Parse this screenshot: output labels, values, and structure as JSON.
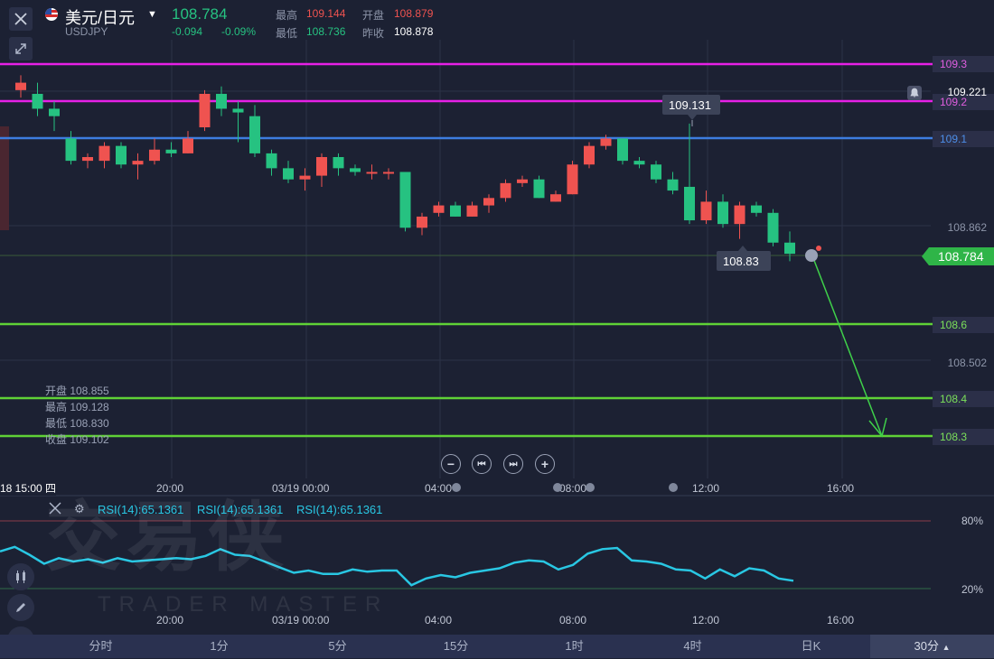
{
  "header": {
    "close_icon": "close-icon",
    "expand_icon": "expand-icon",
    "symbol": "美元/日元",
    "symbol_code": "USDJPY",
    "price": "108.784",
    "change": "-0.094",
    "change_pct": "-0.09%",
    "high_label": "最高",
    "high_value": "109.144",
    "open_label": "开盘",
    "open_value": "108.879",
    "low_label": "最低",
    "low_value": "108.736",
    "prev_close_label": "昨收",
    "prev_close_value": "108.878"
  },
  "levels": [
    {
      "label": "109.3",
      "color": "#e620e6"
    },
    {
      "label": "109.2",
      "color": "#e620e6"
    },
    {
      "label": "109.1",
      "color": "#3d7de0"
    },
    {
      "label": "108.6",
      "color": "#5fd136"
    },
    {
      "label": "108.4",
      "color": "#5fd136"
    },
    {
      "label": "108.3",
      "color": "#5fd136"
    }
  ],
  "axis": {
    "tick_109_221": "109.221",
    "tick_108_862": "108.862",
    "tick_108_502": "108.502",
    "current_price": "108.784"
  },
  "annotations": {
    "high_marker": "109.131",
    "low_marker": "108.83"
  },
  "ohlc": {
    "open": "开盘 108.855",
    "high": "最高 109.128",
    "low": "最低 108.830",
    "close": "收盘 109.102"
  },
  "time_axis": {
    "cursor": "18 15:00 四",
    "t1": "20:00",
    "t2": "03/19 00:00",
    "t3": "04:00",
    "t4": "08:00",
    "t5": "12:00",
    "t6": "16:00"
  },
  "rsi": {
    "label": "RSI(14):65.1361",
    "label2": "RSI(14):65.1361",
    "label3": "RSI(14):65.1361",
    "level_high": "80%",
    "level_low": "20%",
    "values": [
      53,
      57,
      50,
      42,
      47,
      44,
      46,
      43,
      47,
      44,
      45,
      46,
      47,
      46,
      49,
      55,
      50,
      49,
      44,
      39,
      34,
      36,
      33,
      33,
      37,
      35,
      36,
      36,
      23,
      29,
      32,
      30,
      34,
      36,
      38,
      43,
      45,
      44,
      37,
      41,
      51,
      55,
      56,
      45,
      44,
      42,
      37,
      36,
      29,
      37,
      31,
      38,
      36,
      29,
      27
    ]
  },
  "watermark": {
    "logo_text": "交易侠",
    "sub_text": "TRADER MASTER"
  },
  "tabs": [
    "分时",
    "1分",
    "5分",
    "15分",
    "1时",
    "4时",
    "日K",
    "30分"
  ],
  "tabs_active": "30分",
  "candles": [
    {
      "o": 109.23,
      "c": 109.25,
      "h": 109.27,
      "l": 109.21
    },
    {
      "o": 109.22,
      "c": 109.18,
      "h": 109.25,
      "l": 109.16
    },
    {
      "o": 109.18,
      "c": 109.16,
      "h": 109.2,
      "l": 109.12
    },
    {
      "o": 109.1,
      "c": 109.04,
      "h": 109.12,
      "l": 109.03
    },
    {
      "o": 109.04,
      "c": 109.05,
      "h": 109.06,
      "l": 109.02
    },
    {
      "o": 109.04,
      "c": 109.08,
      "h": 109.09,
      "l": 109.02
    },
    {
      "o": 109.08,
      "c": 109.03,
      "h": 109.09,
      "l": 109.02
    },
    {
      "o": 109.03,
      "c": 109.04,
      "h": 109.06,
      "l": 108.99
    },
    {
      "o": 109.04,
      "c": 109.07,
      "h": 109.1,
      "l": 109.03
    },
    {
      "o": 109.07,
      "c": 109.06,
      "h": 109.09,
      "l": 109.05
    },
    {
      "o": 109.06,
      "c": 109.1,
      "h": 109.12,
      "l": 109.06
    },
    {
      "o": 109.13,
      "c": 109.22,
      "h": 109.23,
      "l": 109.12
    },
    {
      "o": 109.22,
      "c": 109.18,
      "h": 109.24,
      "l": 109.16
    },
    {
      "o": 109.18,
      "c": 109.17,
      "h": 109.2,
      "l": 109.09
    },
    {
      "o": 109.16,
      "c": 109.06,
      "h": 109.19,
      "l": 109.05
    },
    {
      "o": 109.06,
      "c": 109.02,
      "h": 109.07,
      "l": 109.0
    },
    {
      "o": 109.02,
      "c": 108.99,
      "h": 109.04,
      "l": 108.98
    },
    {
      "o": 108.99,
      "c": 109.0,
      "h": 109.02,
      "l": 108.96
    },
    {
      "o": 109.0,
      "c": 109.05,
      "h": 109.06,
      "l": 108.97
    },
    {
      "o": 109.05,
      "c": 109.02,
      "h": 109.06,
      "l": 109.0
    },
    {
      "o": 109.02,
      "c": 109.01,
      "h": 109.03,
      "l": 109.0
    },
    {
      "o": 109.01,
      "c": 109.01,
      "h": 109.03,
      "l": 108.99
    },
    {
      "o": 109.01,
      "c": 109.01,
      "h": 109.02,
      "l": 108.99
    },
    {
      "o": 109.01,
      "c": 108.86,
      "h": 109.01,
      "l": 108.85
    },
    {
      "o": 108.86,
      "c": 108.89,
      "h": 108.9,
      "l": 108.84
    },
    {
      "o": 108.9,
      "c": 108.92,
      "h": 108.93,
      "l": 108.89
    },
    {
      "o": 108.92,
      "c": 108.89,
      "h": 108.93,
      "l": 108.89
    },
    {
      "o": 108.89,
      "c": 108.92,
      "h": 108.93,
      "l": 108.89
    },
    {
      "o": 108.92,
      "c": 108.94,
      "h": 108.95,
      "l": 108.9
    },
    {
      "o": 108.94,
      "c": 108.98,
      "h": 108.99,
      "l": 108.93
    },
    {
      "o": 108.98,
      "c": 108.99,
      "h": 109.0,
      "l": 108.97
    },
    {
      "o": 108.99,
      "c": 108.94,
      "h": 109.0,
      "l": 108.94
    },
    {
      "o": 108.93,
      "c": 108.95,
      "h": 108.96,
      "l": 108.93
    },
    {
      "o": 108.95,
      "c": 109.03,
      "h": 109.04,
      "l": 108.95
    },
    {
      "o": 109.03,
      "c": 109.08,
      "h": 109.09,
      "l": 109.02
    },
    {
      "o": 109.08,
      "c": 109.1,
      "h": 109.11,
      "l": 109.07
    },
    {
      "o": 109.1,
      "c": 109.04,
      "h": 109.1,
      "l": 109.03
    },
    {
      "o": 109.04,
      "c": 109.03,
      "h": 109.05,
      "l": 109.02
    },
    {
      "o": 109.03,
      "c": 108.99,
      "h": 109.04,
      "l": 108.98
    },
    {
      "o": 108.99,
      "c": 108.96,
      "h": 109.01,
      "l": 108.95
    },
    {
      "o": 108.97,
      "c": 108.88,
      "h": 109.14,
      "l": 108.87
    },
    {
      "o": 108.88,
      "c": 108.93,
      "h": 108.96,
      "l": 108.87
    },
    {
      "o": 108.93,
      "c": 108.87,
      "h": 108.95,
      "l": 108.86
    },
    {
      "o": 108.87,
      "c": 108.92,
      "h": 108.93,
      "l": 108.83
    },
    {
      "o": 108.92,
      "c": 108.9,
      "h": 108.93,
      "l": 108.89
    },
    {
      "o": 108.9,
      "c": 108.82,
      "h": 108.91,
      "l": 108.81
    },
    {
      "o": 108.82,
      "c": 108.79,
      "h": 108.85,
      "l": 108.77
    }
  ]
}
